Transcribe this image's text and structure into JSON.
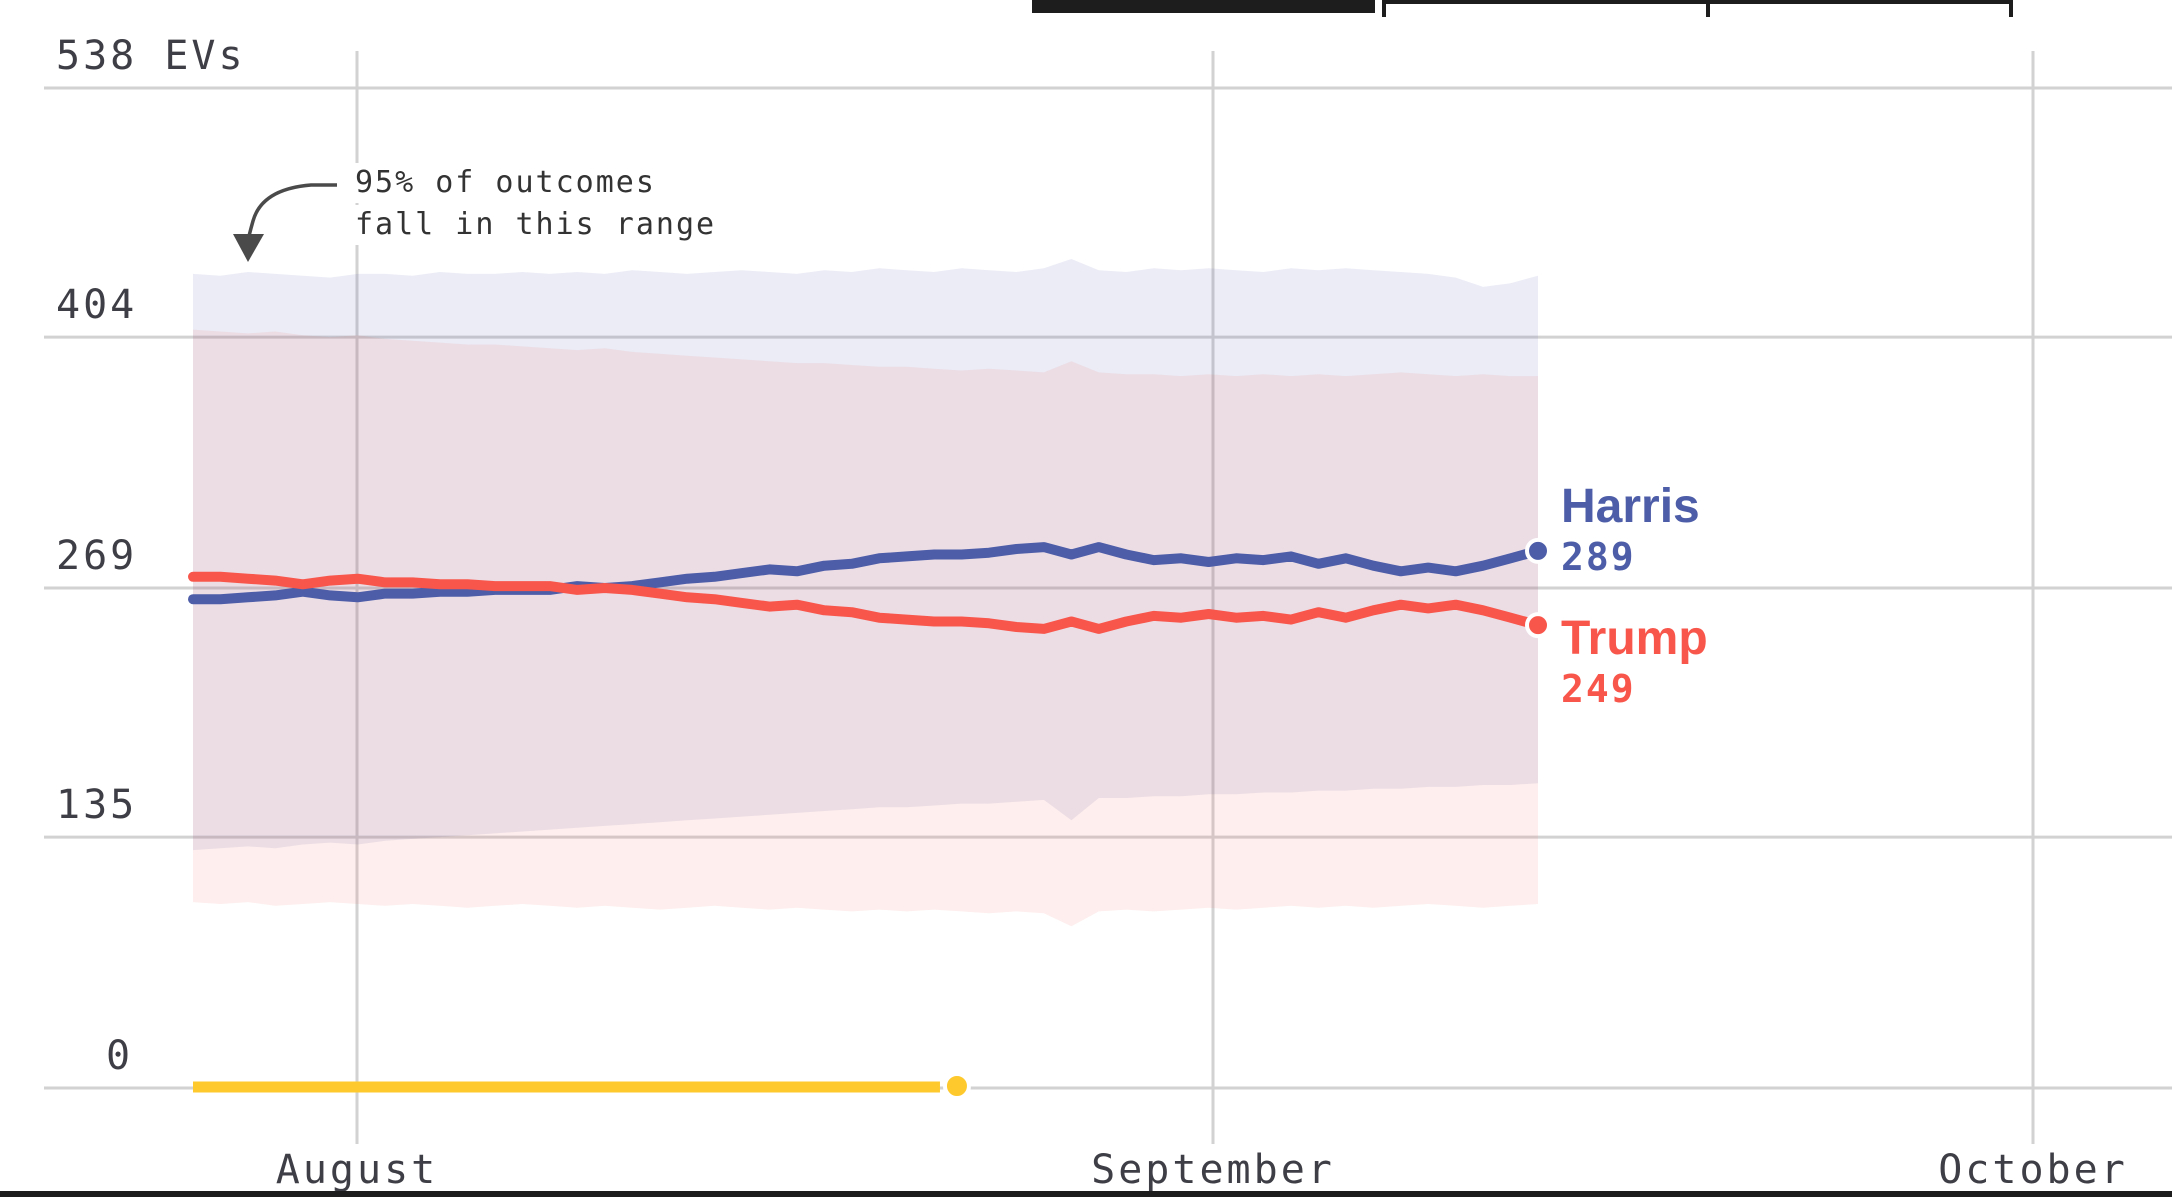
{
  "toolbar_tabs": {
    "count": 3,
    "selected_index": 0
  },
  "chart_data": {
    "type": "line",
    "unit_label": "538 EVs",
    "y_ticks": [
      538,
      404,
      269,
      135,
      0
    ],
    "x_ticks": [
      "August",
      "September",
      "October"
    ],
    "ylim": [
      0,
      538
    ],
    "grid": true,
    "annotation": {
      "line1": "95% of outcomes",
      "line2": "fall in this range"
    },
    "series": [
      {
        "name": "Harris",
        "end_value": "289",
        "color": "#4d5da8",
        "values": [
          263,
          263,
          264,
          265,
          267,
          265,
          264,
          266,
          266,
          267,
          267,
          268,
          268,
          268,
          270,
          269,
          270,
          272,
          274,
          275,
          277,
          279,
          278,
          281,
          282,
          285,
          286,
          287,
          287,
          288,
          290,
          291,
          287,
          291,
          287,
          284,
          285,
          283,
          285,
          284,
          286,
          282,
          285,
          281,
          278,
          280,
          278,
          281,
          285,
          289
        ]
      },
      {
        "name": "Trump",
        "end_value": "249",
        "color": "#f8564b",
        "values": [
          275,
          275,
          274,
          273,
          271,
          273,
          274,
          272,
          272,
          271,
          271,
          270,
          270,
          270,
          268,
          269,
          268,
          266,
          264,
          263,
          261,
          259,
          260,
          257,
          256,
          253,
          252,
          251,
          251,
          250,
          248,
          247,
          251,
          247,
          251,
          254,
          253,
          255,
          253,
          254,
          252,
          256,
          253,
          257,
          260,
          258,
          260,
          257,
          253,
          249
        ]
      }
    ],
    "bands": {
      "harris_band_color": "rgba(99,108,182,0.13)",
      "trump_band_color": "rgba(249,100,90,0.11)",
      "harris_hi": [
        438,
        437,
        439,
        438,
        437,
        436,
        438,
        438,
        437,
        439,
        438,
        438,
        439,
        438,
        439,
        438,
        440,
        439,
        438,
        439,
        440,
        439,
        438,
        440,
        439,
        441,
        440,
        439,
        441,
        440,
        439,
        441,
        446,
        440,
        439,
        441,
        440,
        441,
        440,
        439,
        441,
        440,
        441,
        440,
        439,
        438,
        436,
        431,
        433,
        437
      ],
      "harris_lo": [
        128,
        129,
        130,
        129,
        131,
        132,
        131,
        133,
        134,
        135,
        136,
        137,
        138,
        139,
        140,
        141,
        142,
        143,
        144,
        145,
        146,
        147,
        148,
        149,
        150,
        151,
        151,
        152,
        153,
        153,
        154,
        155,
        144,
        156,
        156,
        157,
        157,
        158,
        158,
        159,
        159,
        160,
        160,
        161,
        161,
        162,
        162,
        163,
        163,
        164
      ],
      "trump_hi": [
        408,
        407,
        406,
        407,
        405,
        404,
        405,
        403,
        402,
        401,
        400,
        400,
        399,
        398,
        397,
        398,
        396,
        395,
        394,
        393,
        392,
        391,
        390,
        390,
        389,
        388,
        388,
        387,
        386,
        387,
        386,
        385,
        391,
        385,
        384,
        384,
        383,
        384,
        383,
        384,
        383,
        384,
        383,
        384,
        385,
        384,
        383,
        384,
        383,
        383
      ],
      "trump_lo": [
        100,
        99,
        100,
        98,
        99,
        100,
        99,
        98,
        99,
        98,
        97,
        98,
        99,
        98,
        97,
        98,
        97,
        96,
        97,
        98,
        97,
        96,
        97,
        96,
        95,
        96,
        95,
        96,
        95,
        94,
        95,
        94,
        87,
        95,
        96,
        95,
        96,
        97,
        96,
        97,
        98,
        97,
        98,
        97,
        98,
        99,
        98,
        97,
        98,
        99
      ]
    },
    "timeline": {
      "color": "#fdc92c",
      "end_frac": 0.568
    },
    "colors": {
      "gridline": "#d2d2d2",
      "axis_text": "#3e3e46",
      "annotation_text": "#333333",
      "arrow": "#4a4a4a",
      "tab_bar": "#1d1d1d"
    }
  }
}
